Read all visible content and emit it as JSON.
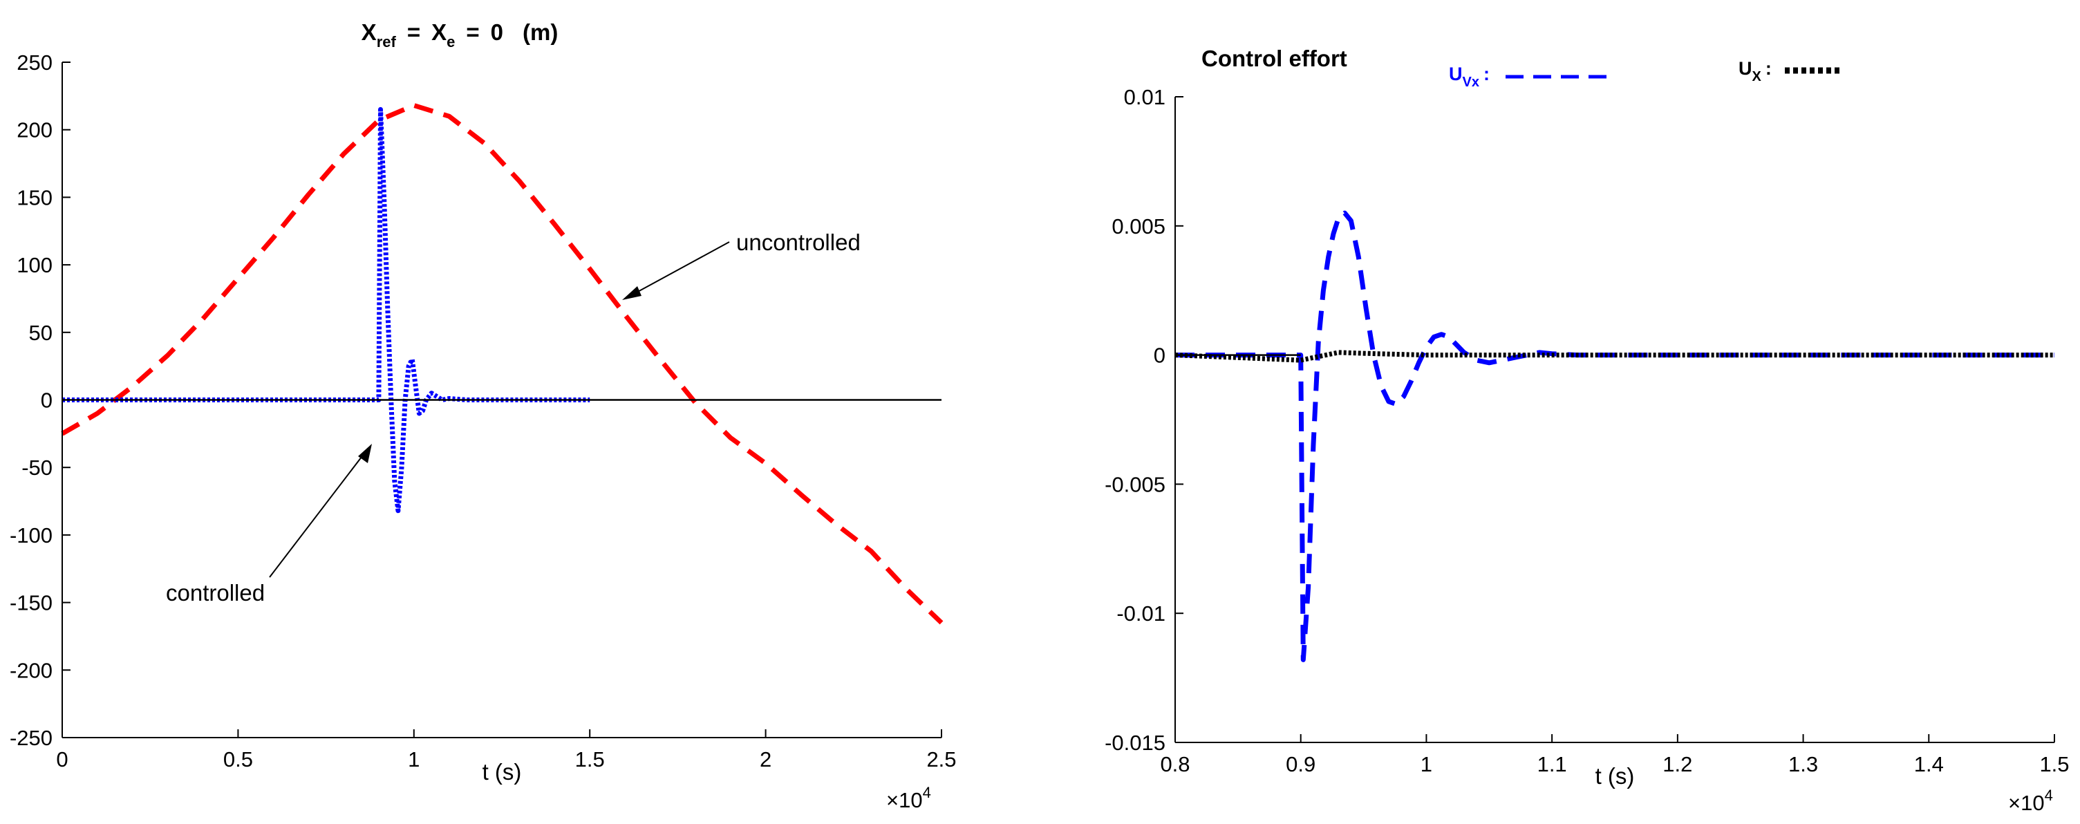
{
  "chart_data": [
    {
      "type": "line",
      "title": {
        "main": "X",
        "sub1": "ref",
        "eq1": "=",
        "main2": "X",
        "sub2": "e",
        "eq2": "=",
        "val": "0",
        "unit": "(m)"
      },
      "xlabel": "t (s)",
      "ylabel": "",
      "x_multiplier": {
        "base": "×10",
        "exp": "4"
      },
      "xlim": [
        0,
        2.5
      ],
      "ylim": [
        -250,
        250
      ],
      "xticks": [
        "0",
        "0.5",
        "1",
        "1.5",
        "2",
        "2.5"
      ],
      "yticks": [
        "-250",
        "-200",
        "-150",
        "-100",
        "-50",
        "0",
        "50",
        "100",
        "150",
        "200",
        "250"
      ],
      "grid": false,
      "annotations": [
        {
          "text": "uncontrolled"
        },
        {
          "text": "controlled"
        }
      ],
      "series": [
        {
          "style": "dashed",
          "color": "#ff0000",
          "x": [
            0,
            0.1,
            0.2,
            0.3,
            0.4,
            0.5,
            0.6,
            0.7,
            0.8,
            0.9,
            1.0,
            1.1,
            1.2,
            1.3,
            1.4,
            1.5,
            1.6,
            1.7,
            1.8,
            1.9,
            2.0,
            2.1,
            2.2,
            2.3,
            2.4,
            2.5
          ],
          "y": [
            -25,
            -10,
            10,
            33,
            60,
            90,
            120,
            152,
            182,
            207,
            218,
            210,
            190,
            162,
            130,
            97,
            63,
            30,
            -2,
            -28,
            -47,
            -70,
            -92,
            -112,
            -140,
            -165
          ]
        },
        {
          "style": "dotted",
          "color": "#0000ff",
          "x": [
            0,
            0.9,
            0.905,
            0.915,
            0.925,
            0.935,
            0.945,
            0.955,
            0.965,
            0.975,
            0.985,
            0.995,
            1.005,
            1.015,
            1.025,
            1.035,
            1.05,
            1.08,
            1.1,
            1.15,
            1.2,
            1.3,
            1.4,
            1.5
          ],
          "y": [
            0,
            0,
            215,
            150,
            70,
            0,
            -60,
            -82,
            -50,
            0,
            25,
            30,
            10,
            -10,
            -8,
            0,
            5,
            0,
            1,
            0,
            0,
            0,
            0,
            0
          ]
        },
        {
          "style": "solid",
          "color": "#000000",
          "x": [
            0,
            2.5
          ],
          "y": [
            0,
            0
          ]
        }
      ]
    },
    {
      "type": "line",
      "title": "Control effort",
      "xlabel": "t (s)",
      "ylabel": "",
      "x_multiplier": {
        "base": "×10",
        "exp": "4"
      },
      "xlim": [
        0.8,
        1.5
      ],
      "ylim": [
        -0.015,
        0.01
      ],
      "xticks": [
        "0.8",
        "0.9",
        "1",
        "1.1",
        "1.2",
        "1.3",
        "1.4",
        "1.5"
      ],
      "yticks": [
        "-0.015",
        "-0.01",
        "-0.005",
        "0",
        "0.005",
        "0.01"
      ],
      "grid": false,
      "legend": [
        {
          "name_main": "U",
          "name_sub": "Vx",
          "sep": ":",
          "color": "#0000ff",
          "style": "dashed"
        },
        {
          "name_main": "U",
          "name_sub": "X",
          "sep": ":",
          "color": "#000000",
          "style": "dotted"
        }
      ],
      "series": [
        {
          "style": "dashed",
          "color": "#0000ff",
          "x": [
            0.8,
            0.9,
            0.902,
            0.906,
            0.91,
            0.914,
            0.918,
            0.922,
            0.926,
            0.93,
            0.935,
            0.94,
            0.946,
            0.952,
            0.958,
            0.964,
            0.97,
            0.976,
            0.982,
            0.988,
            0.994,
            1.0,
            1.006,
            1.012,
            1.018,
            1.024,
            1.03,
            1.04,
            1.05,
            1.06,
            1.07,
            1.08,
            1.09,
            1.1,
            1.12,
            1.15,
            1.2,
            1.3,
            1.4,
            1.5
          ],
          "y": [
            0,
            0,
            -0.0118,
            -0.009,
            -0.0035,
            0.0005,
            0.0025,
            0.0038,
            0.0047,
            0.0053,
            0.0055,
            0.0052,
            0.0038,
            0.0018,
            0.0,
            -0.0012,
            -0.0018,
            -0.0019,
            -0.0016,
            -0.001,
            -0.0003,
            0.0003,
            0.0007,
            0.0008,
            0.0007,
            0.0004,
            0.0001,
            -0.0002,
            -0.0003,
            -0.0002,
            -0.0001,
            0.0,
            0.0001,
            5e-05,
            0.0,
            0.0,
            0.0,
            0.0,
            0.0,
            0.0
          ]
        },
        {
          "style": "dotted",
          "color": "#000000",
          "x": [
            0.8,
            0.9,
            0.91,
            0.93,
            0.96,
            1.0,
            1.05,
            1.1,
            1.2,
            1.3,
            1.4,
            1.5
          ],
          "y": [
            0,
            -0.0002,
            -0.0001,
            0.0001,
            5e-05,
            0.0,
            0.0,
            0.0,
            0.0,
            0.0,
            0.0,
            0.0
          ]
        },
        {
          "style": "solid",
          "color": "#000000",
          "x": [
            0.8,
            0.9
          ],
          "y": [
            0,
            0
          ]
        }
      ]
    }
  ]
}
